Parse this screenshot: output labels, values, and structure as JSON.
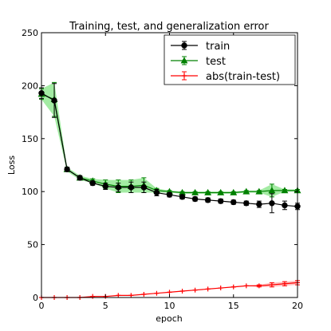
{
  "chart_data": {
    "type": "line",
    "title": "Training, test, and generalization error",
    "xlabel": "epoch",
    "ylabel": "Loss",
    "xlim": [
      0,
      20
    ],
    "ylim": [
      0,
      250
    ],
    "xticks": [
      "0",
      "5",
      "10",
      "15",
      "20"
    ],
    "yticks": [
      "0",
      "50",
      "100",
      "150",
      "200",
      "250"
    ],
    "xtick_values": [
      0,
      5,
      10,
      15,
      20
    ],
    "ytick_values": [
      0,
      50,
      100,
      150,
      200,
      250
    ],
    "grid": false,
    "legend_position": "top-right",
    "x": [
      0,
      1,
      2,
      3,
      4,
      5,
      6,
      7,
      8,
      9,
      10,
      11,
      12,
      13,
      14,
      15,
      16,
      17,
      18,
      19,
      20
    ],
    "series": [
      {
        "name": "train",
        "color": "#000000",
        "marker": "circle",
        "values": [
          193,
          186,
          121,
          113,
          108,
          105,
          104,
          104,
          104,
          99,
          97,
          95,
          93,
          92,
          91,
          90,
          89,
          88,
          89,
          87,
          86
        ],
        "errors": [
          5,
          16,
          2,
          2,
          2,
          3,
          4,
          5,
          5,
          3,
          2,
          2,
          2,
          2,
          2,
          2,
          2,
          3,
          9,
          4,
          3
        ]
      },
      {
        "name": "test",
        "color": "#008000",
        "marker": "triangle",
        "band_color": "#66dd66",
        "values": [
          192,
          187,
          121,
          113,
          110,
          107,
          105,
          105,
          106,
          101,
          100,
          99,
          99,
          99,
          99,
          99,
          100,
          100,
          101,
          101,
          101
        ],
        "errors": [
          5,
          16,
          2,
          2,
          2,
          4,
          6,
          6,
          7,
          2,
          1,
          1,
          1,
          1,
          1,
          1,
          1,
          1,
          6,
          1,
          1
        ]
      },
      {
        "name": "abs(train-test)",
        "color": "#ff0000",
        "marker": "plus",
        "band_color": "#ff9999",
        "values": [
          0,
          0,
          0,
          0,
          1,
          1,
          2,
          2,
          3,
          4,
          5,
          6,
          7,
          8,
          9,
          10,
          11,
          11,
          12,
          13,
          14
        ],
        "errors": [
          0,
          0,
          0,
          0,
          0,
          0,
          0,
          0,
          0,
          0,
          0,
          0,
          0,
          0,
          0,
          0,
          0,
          1,
          2,
          2,
          2
        ]
      }
    ]
  }
}
